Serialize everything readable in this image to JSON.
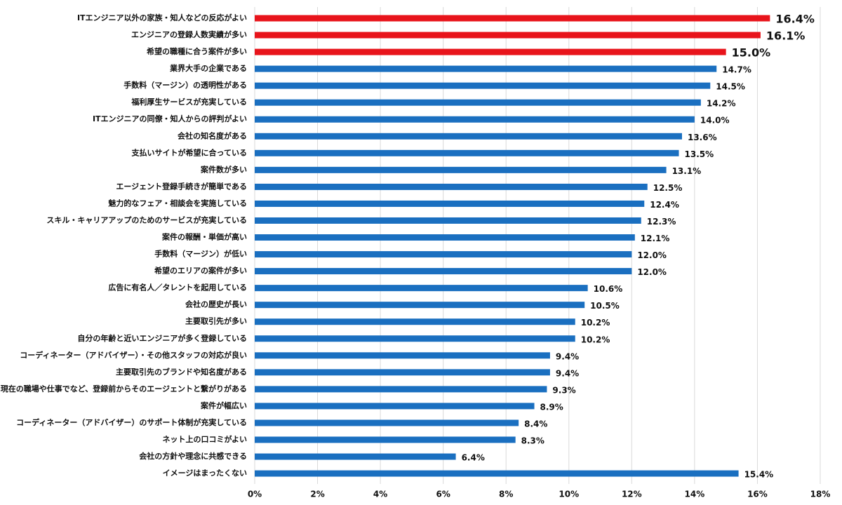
{
  "chart_data": {
    "type": "bar",
    "orientation": "horizontal",
    "categories": [
      "ITエンジニア以外の家族・知人などの反応がよい",
      "エンジニアの登録人数実績が多い",
      "希望の職種に合う案件が多い",
      "業界大手の企業である",
      "手数料（マージン）の透明性がある",
      "福利厚生サービスが充実している",
      "ITエンジニアの同僚・知人からの評判がよい",
      "会社の知名度がある",
      "支払いサイトが希望に合っている",
      "案件数が多い",
      "エージェント登録手続きが簡単である",
      "魅力的なフェア・相談会を実施している",
      "スキル・キャリアアップのためのサービスが充実している",
      "案件の報酬・単価が高い",
      "手数料（マージン）が低い",
      "希望のエリアの案件が多い",
      "広告に有名人／タレントを起用している",
      "会社の歴史が長い",
      "主要取引先が多い",
      "自分の年齢と近いエンジニアが多く登録している",
      "コーディネーター（アドバイザー）・その他スタッフの対応が良い",
      "主要取引先のブランドや知名度がある",
      "現在の職場や仕事でなど、登録前からそのエージェントと繋がりがある",
      "案件が幅広い",
      "コーディネーター（アドバイザー）のサポート体制が充実している",
      "ネット上の口コミがよい",
      "会社の方針や理念に共感できる",
      "イメージはまったくない"
    ],
    "values": [
      16.4,
      16.1,
      15.0,
      14.7,
      14.5,
      14.2,
      14.0,
      13.6,
      13.5,
      13.1,
      12.5,
      12.4,
      12.3,
      12.1,
      12.0,
      12.0,
      10.6,
      10.5,
      10.2,
      10.2,
      9.4,
      9.4,
      9.3,
      8.9,
      8.4,
      8.3,
      6.4,
      15.4
    ],
    "value_labels": [
      "16.4%",
      "16.1%",
      "15.0%",
      "14.7%",
      "14.5%",
      "14.2%",
      "14.0%",
      "13.6%",
      "13.5%",
      "13.1%",
      "12.5%",
      "12.4%",
      "12.3%",
      "12.1%",
      "12.0%",
      "12.0%",
      "10.6%",
      "10.5%",
      "10.2%",
      "10.2%",
      "9.4%",
      "9.4%",
      "9.3%",
      "8.9%",
      "8.4%",
      "8.3%",
      "6.4%",
      "15.4%"
    ],
    "color": "#1a6fc0",
    "colors": [
      "#e8141b",
      "#e8141b",
      "#e8141b",
      "#1a6fc0",
      "#1a6fc0",
      "#1a6fc0",
      "#1a6fc0",
      "#1a6fc0",
      "#1a6fc0",
      "#1a6fc0",
      "#1a6fc0",
      "#1a6fc0",
      "#1a6fc0",
      "#1a6fc0",
      "#1a6fc0",
      "#1a6fc0",
      "#1a6fc0",
      "#1a6fc0",
      "#1a6fc0",
      "#1a6fc0",
      "#1a6fc0",
      "#1a6fc0",
      "#1a6fc0",
      "#1a6fc0",
      "#1a6fc0",
      "#1a6fc0",
      "#1a6fc0",
      "#1a6fc0"
    ],
    "xlim": [
      0,
      18
    ],
    "xticks": [
      {
        "value": 0,
        "label": "0%"
      },
      {
        "value": 2,
        "label": "2%"
      },
      {
        "value": 4,
        "label": "4%"
      },
      {
        "value": 6,
        "label": "6%"
      },
      {
        "value": 8,
        "label": "8%"
      },
      {
        "value": 10,
        "label": "10%"
      },
      {
        "value": 12,
        "label": "12%"
      },
      {
        "value": 14,
        "label": "14%"
      },
      {
        "value": 16,
        "label": "16%"
      },
      {
        "value": 18,
        "label": "18%"
      }
    ],
    "grid": true
  }
}
